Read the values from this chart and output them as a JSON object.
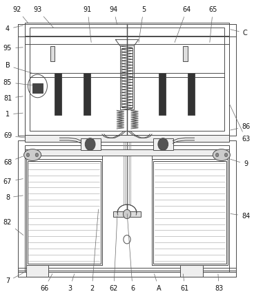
{
  "bg_color": "#ffffff",
  "line_color": "#4a4a4a",
  "lw": 0.7,
  "leaders": {
    "92": {
      "lpos": [
        0.068,
        0.968
      ],
      "apos": [
        0.115,
        0.92
      ]
    },
    "93": {
      "lpos": [
        0.148,
        0.968
      ],
      "apos": [
        0.215,
        0.905
      ]
    },
    "91": {
      "lpos": [
        0.345,
        0.968
      ],
      "apos": [
        0.36,
        0.855
      ]
    },
    "94": {
      "lpos": [
        0.448,
        0.968
      ],
      "apos": [
        0.462,
        0.915
      ]
    },
    "5": {
      "lpos": [
        0.565,
        0.968
      ],
      "apos": [
        0.545,
        0.855
      ]
    },
    "64": {
      "lpos": [
        0.735,
        0.968
      ],
      "apos": [
        0.685,
        0.855
      ]
    },
    "65": {
      "lpos": [
        0.838,
        0.968
      ],
      "apos": [
        0.825,
        0.855
      ]
    },
    "4": {
      "lpos": [
        0.03,
        0.905
      ],
      "apos": [
        0.098,
        0.918
      ]
    },
    "C": {
      "lpos": [
        0.965,
        0.892
      ],
      "apos": [
        0.9,
        0.905
      ]
    },
    "95": {
      "lpos": [
        0.03,
        0.842
      ],
      "apos": [
        0.098,
        0.845
      ]
    },
    "B": {
      "lpos": [
        0.03,
        0.785
      ],
      "apos": [
        0.135,
        0.758
      ]
    },
    "85": {
      "lpos": [
        0.03,
        0.73
      ],
      "apos": [
        0.135,
        0.72
      ]
    },
    "81": {
      "lpos": [
        0.03,
        0.678
      ],
      "apos": [
        0.098,
        0.685
      ]
    },
    "1": {
      "lpos": [
        0.03,
        0.625
      ],
      "apos": [
        0.098,
        0.63
      ]
    },
    "69": {
      "lpos": [
        0.03,
        0.555
      ],
      "apos": [
        0.105,
        0.548
      ]
    },
    "68": {
      "lpos": [
        0.03,
        0.468
      ],
      "apos": [
        0.098,
        0.49
      ]
    },
    "67": {
      "lpos": [
        0.03,
        0.405
      ],
      "apos": [
        0.098,
        0.415
      ]
    },
    "8": {
      "lpos": [
        0.03,
        0.352
      ],
      "apos": [
        0.098,
        0.36
      ]
    },
    "82": {
      "lpos": [
        0.03,
        0.27
      ],
      "apos": [
        0.098,
        0.225
      ]
    },
    "7": {
      "lpos": [
        0.03,
        0.078
      ],
      "apos": [
        0.098,
        0.108
      ]
    },
    "66": {
      "lpos": [
        0.175,
        0.055
      ],
      "apos": [
        0.21,
        0.108
      ]
    },
    "3": {
      "lpos": [
        0.275,
        0.055
      ],
      "apos": [
        0.295,
        0.108
      ]
    },
    "2": {
      "lpos": [
        0.362,
        0.055
      ],
      "apos": [
        0.388,
        0.32
      ]
    },
    "62": {
      "lpos": [
        0.448,
        0.055
      ],
      "apos": [
        0.462,
        0.298
      ]
    },
    "6": {
      "lpos": [
        0.522,
        0.055
      ],
      "apos": [
        0.5,
        0.305
      ]
    },
    "A": {
      "lpos": [
        0.625,
        0.055
      ],
      "apos": [
        0.605,
        0.108
      ]
    },
    "61": {
      "lpos": [
        0.728,
        0.055
      ],
      "apos": [
        0.72,
        0.108
      ]
    },
    "83": {
      "lpos": [
        0.862,
        0.055
      ],
      "apos": [
        0.858,
        0.108
      ]
    },
    "63": {
      "lpos": [
        0.968,
        0.545
      ],
      "apos": [
        0.9,
        0.665
      ]
    },
    "86": {
      "lpos": [
        0.968,
        0.585
      ],
      "apos": [
        0.9,
        0.572
      ]
    },
    "9": {
      "lpos": [
        0.968,
        0.462
      ],
      "apos": [
        0.9,
        0.48
      ]
    },
    "84": {
      "lpos": [
        0.968,
        0.292
      ],
      "apos": [
        0.9,
        0.3
      ]
    }
  }
}
